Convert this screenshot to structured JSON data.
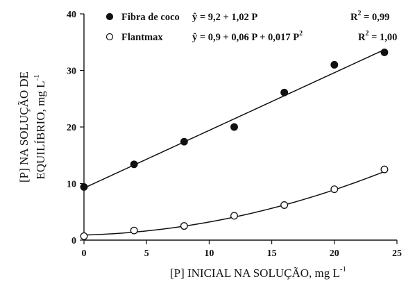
{
  "chart_data": {
    "type": "scatter",
    "xlabel": "[P] INICIAL NA SOLUÇÃO, mg L",
    "xlabel_sup": "-1",
    "ylabel_line1": "[P] NA SOLUÇÃO DE",
    "ylabel_line2": "EQUILÍBRIO, mg L",
    "ylabel_sup": "-1",
    "xlim": [
      0,
      25
    ],
    "ylim": [
      0,
      40
    ],
    "xticks": [
      "0",
      "5",
      "10",
      "15",
      "20",
      "25"
    ],
    "yticks": [
      "0",
      "10",
      "20",
      "30",
      "40"
    ],
    "grid": false,
    "legend_position": "top",
    "series": [
      {
        "name": "Fibra de coco",
        "marker": "filled-circle",
        "color": "#111111",
        "x": [
          0,
          4,
          8,
          12,
          16,
          20,
          24
        ],
        "y": [
          9.4,
          13.4,
          17.4,
          20.0,
          26.1,
          31.0,
          33.2
        ],
        "fit": {
          "type": "linear",
          "a": 9.2,
          "b": 1.02
        },
        "equation": "ŷ = 9,2 + 1,02 P",
        "r2_prefix": "R",
        "r2_sup": "2",
        "r2_value": " = 0,99"
      },
      {
        "name": "Flantmax",
        "marker": "open-circle",
        "color": "#111111",
        "x": [
          0,
          4,
          8,
          12,
          16,
          20,
          24
        ],
        "y": [
          0.7,
          1.7,
          2.5,
          4.3,
          6.2,
          9.0,
          12.5
        ],
        "fit": {
          "type": "quadratic",
          "a": 0.9,
          "b": 0.06,
          "c": 0.017
        },
        "equation": "ŷ = 0,9 + 0,06 P + 0,017 P",
        "equation_sup": "2",
        "r2_prefix": "R",
        "r2_sup": "2",
        "r2_value": " = 1,00"
      }
    ]
  }
}
